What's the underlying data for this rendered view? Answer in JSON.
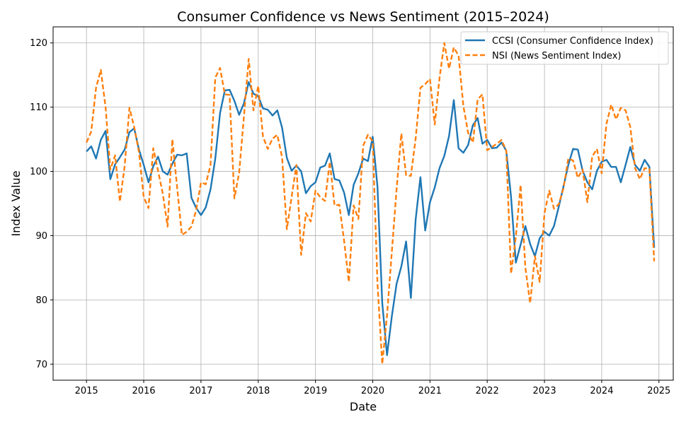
{
  "chart_data": {
    "type": "line",
    "title": "Consumer Confidence vs News Sentiment (2015–2024)",
    "xlabel": "Date",
    "ylabel": "Index Value",
    "xlim": [
      "2014-06",
      "2025-04"
    ],
    "ylim": [
      67.5,
      122.5
    ],
    "xticks": [
      "2015",
      "2016",
      "2017",
      "2018",
      "2019",
      "2020",
      "2021",
      "2022",
      "2023",
      "2024",
      "2025"
    ],
    "yticks": [
      70,
      80,
      90,
      100,
      110,
      120
    ],
    "grid": true,
    "legend_position": "upper right",
    "x": [
      "2015-01",
      "2015-02",
      "2015-03",
      "2015-04",
      "2015-05",
      "2015-06",
      "2015-07",
      "2015-08",
      "2015-09",
      "2015-10",
      "2015-11",
      "2015-12",
      "2016-01",
      "2016-02",
      "2016-03",
      "2016-04",
      "2016-05",
      "2016-06",
      "2016-07",
      "2016-08",
      "2016-09",
      "2016-10",
      "2016-11",
      "2016-12",
      "2017-01",
      "2017-02",
      "2017-03",
      "2017-04",
      "2017-05",
      "2017-06",
      "2017-07",
      "2017-08",
      "2017-09",
      "2017-10",
      "2017-11",
      "2017-12",
      "2018-01",
      "2018-02",
      "2018-03",
      "2018-04",
      "2018-05",
      "2018-06",
      "2018-07",
      "2018-08",
      "2018-09",
      "2018-10",
      "2018-11",
      "2018-12",
      "2019-01",
      "2019-02",
      "2019-03",
      "2019-04",
      "2019-05",
      "2019-06",
      "2019-07",
      "2019-08",
      "2019-09",
      "2019-10",
      "2019-11",
      "2019-12",
      "2020-01",
      "2020-02",
      "2020-03",
      "2020-04",
      "2020-05",
      "2020-06",
      "2020-07",
      "2020-08",
      "2020-09",
      "2020-10",
      "2020-11",
      "2020-12",
      "2021-01",
      "2021-02",
      "2021-03",
      "2021-04",
      "2021-05",
      "2021-06",
      "2021-07",
      "2021-08",
      "2021-09",
      "2021-10",
      "2021-11",
      "2021-12",
      "2022-01",
      "2022-02",
      "2022-03",
      "2022-04",
      "2022-05",
      "2022-06",
      "2022-07",
      "2022-08",
      "2022-09",
      "2022-10",
      "2022-11",
      "2022-12",
      "2023-01",
      "2023-02",
      "2023-03",
      "2023-04",
      "2023-05",
      "2023-06",
      "2023-07",
      "2023-08",
      "2023-09",
      "2023-10",
      "2023-11",
      "2023-12",
      "2024-01",
      "2024-02",
      "2024-03",
      "2024-04",
      "2024-05",
      "2024-06",
      "2024-07",
      "2024-08",
      "2024-09",
      "2024-10",
      "2024-11",
      "2024-12"
    ],
    "series": [
      {
        "name": "CCSI (Consumer Confidence Index)",
        "color": "#1f77b4",
        "style": "solid",
        "values": [
          103.1,
          103.9,
          102.0,
          104.9,
          106.3,
          98.8,
          101.1,
          102.2,
          103.4,
          106.1,
          106.7,
          103.4,
          101.0,
          98.3,
          100.8,
          102.3,
          100.0,
          99.5,
          101.2,
          102.6,
          102.5,
          102.8,
          95.9,
          94.3,
          93.2,
          94.4,
          97.2,
          102.0,
          109.1,
          112.6,
          112.7,
          111.0,
          108.8,
          110.6,
          113.9,
          112.1,
          111.7,
          109.8,
          109.6,
          108.7,
          109.5,
          106.8,
          102.1,
          100.1,
          100.9,
          100.0,
          96.6,
          97.7,
          98.3,
          100.6,
          100.9,
          102.8,
          98.8,
          98.6,
          96.7,
          93.2,
          97.9,
          99.7,
          102.0,
          101.6,
          105.4,
          97.6,
          79.5,
          71.4,
          77.4,
          82.5,
          85.2,
          89.1,
          80.3,
          92.5,
          99.1,
          90.8,
          95.2,
          97.5,
          100.5,
          102.4,
          105.5,
          111.1,
          103.6,
          102.9,
          104.1,
          107.2,
          108.3,
          104.3,
          104.9,
          103.6,
          103.7,
          104.5,
          103.2,
          96.0,
          85.8,
          88.6,
          91.5,
          88.7,
          86.8,
          89.6,
          90.6,
          90.0,
          91.5,
          94.5,
          97.7,
          101.0,
          103.5,
          103.4,
          100.1,
          98.3,
          97.2,
          100.1,
          101.5,
          101.8,
          100.7,
          100.7,
          98.3,
          101.0,
          103.8,
          101.0,
          100.1,
          101.8,
          100.7,
          88.1
        ]
      },
      {
        "name": "NSI (News Sentiment Index)",
        "color": "#ff7f0e",
        "style": "dashed",
        "values": [
          104.5,
          106.2,
          113.0,
          115.8,
          110.0,
          100.3,
          102.5,
          95.3,
          100.8,
          109.9,
          106.9,
          103.0,
          96.0,
          94.3,
          103.6,
          100.1,
          96.5,
          91.4,
          105.0,
          97.5,
          90.1,
          90.6,
          91.4,
          94.0,
          98.3,
          98.0,
          101.0,
          114.6,
          116.1,
          112.0,
          111.9,
          95.8,
          99.8,
          108.5,
          117.5,
          109.5,
          113.3,
          105.4,
          103.5,
          105.1,
          105.7,
          102.2,
          91.0,
          96.0,
          101.0,
          87.0,
          93.5,
          92.2,
          97.0,
          96.0,
          95.4,
          101.5,
          94.7,
          94.8,
          89.2,
          82.8,
          94.7,
          92.6,
          104.0,
          105.7,
          104.7,
          82.5,
          70.0,
          77.6,
          87.4,
          97.2,
          105.9,
          99.4,
          99.3,
          105.1,
          113.0,
          113.6,
          114.4,
          107.3,
          114.5,
          120.0,
          116.0,
          119.3,
          118.0,
          110.2,
          106.0,
          104.5,
          111.2,
          112.0,
          103.3,
          103.8,
          104.3,
          104.9,
          103.2,
          84.1,
          89.8,
          97.9,
          85.0,
          79.5,
          86.8,
          82.8,
          93.5,
          97.0,
          94.2,
          94.9,
          97.4,
          102.0,
          101.7,
          99.0,
          100.3,
          95.2,
          102.3,
          103.5,
          99.7,
          107.4,
          110.4,
          108.1,
          109.9,
          109.5,
          106.9,
          100.5,
          98.8,
          100.5,
          100.4,
          86.0
        ]
      }
    ]
  }
}
